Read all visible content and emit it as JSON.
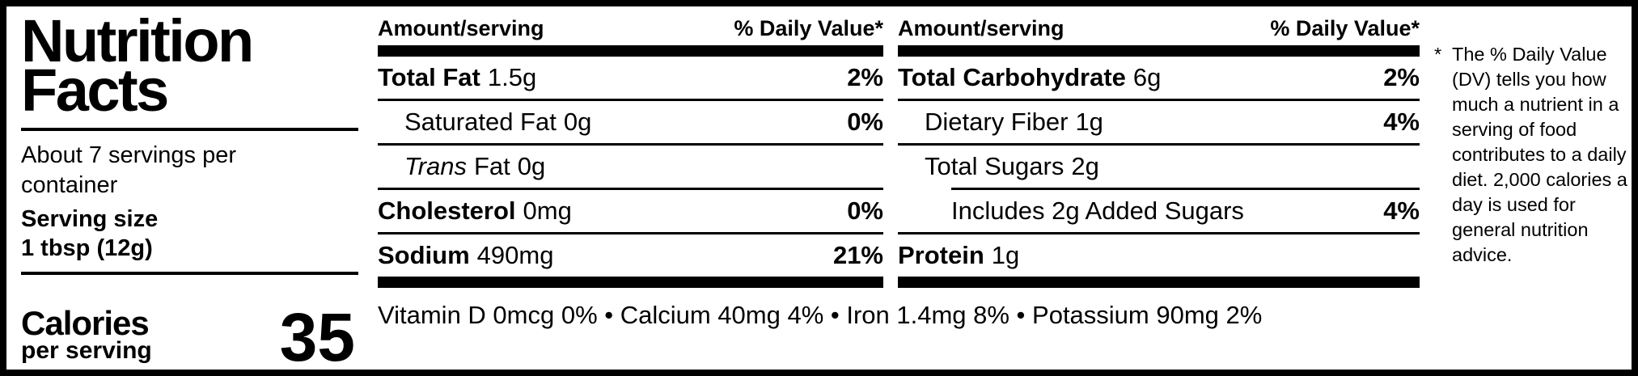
{
  "label": {
    "title_line1": "Nutrition",
    "title_line2": "Facts",
    "servings_per_container": "About 7 servings per container",
    "serving_size_label": "Serving size",
    "serving_size_value": "1 tbsp (12g)",
    "calories_label": "Calories",
    "calories_sublabel": "per serving",
    "calories_value": "35",
    "column_header_amount": "Amount/serving",
    "column_header_dv": "% Daily Value*",
    "col1_rows": [
      {
        "name": "Total Fat",
        "amount": "1.5g",
        "dv": "2%"
      },
      {
        "name": "Saturated Fat",
        "amount": "0g",
        "dv": "0%"
      },
      {
        "name_italic": "Trans",
        "name": "Fat",
        "amount": "0g",
        "dv": ""
      },
      {
        "name": "Cholesterol",
        "amount": "0mg",
        "dv": "0%"
      },
      {
        "name": "Sodium",
        "amount": "490mg",
        "dv": "21%"
      }
    ],
    "col2_rows": [
      {
        "name": "Total Carbohydrate",
        "amount": "6g",
        "dv": "2%"
      },
      {
        "name": "Dietary Fiber",
        "amount": "1g",
        "dv": "4%"
      },
      {
        "name": "Total Sugars",
        "amount": "2g",
        "dv": ""
      },
      {
        "name": "Includes 2g Added Sugars",
        "amount": "",
        "dv": "4%"
      },
      {
        "name": "Protein",
        "amount": "1g",
        "dv": ""
      }
    ],
    "micronutrients": "Vitamin D 0mcg 0% • Calcium 40mg 4% • Iron 1.4mg 8% • Potassium 90mg 2%",
    "footnote_marker": "*",
    "footnote_text": "The % Daily Value (DV) tells you how much a nutrient in a serving of food contributes to a daily diet. 2,000 calories a day is used for general nutrition advice.",
    "colors": {
      "ink": "#000000",
      "background": "#ffffff"
    }
  }
}
